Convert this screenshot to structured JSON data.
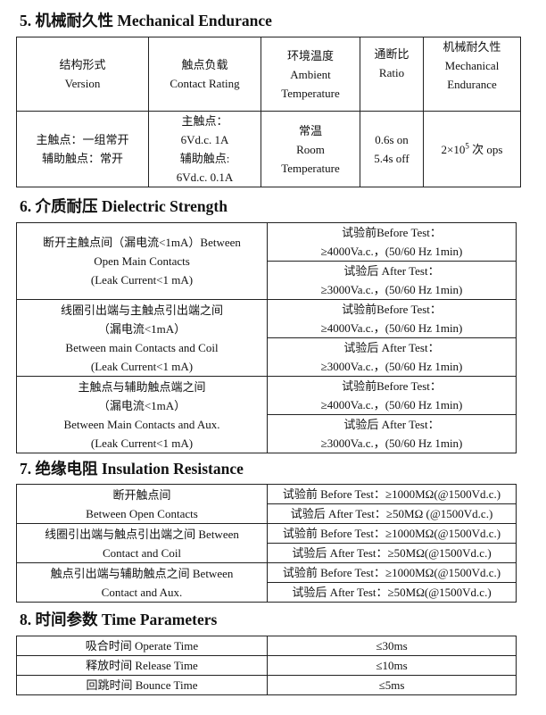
{
  "s5": {
    "title": "5.  机械耐久性 Mechanical Endurance",
    "headers": [
      [
        "结构形式",
        "Version"
      ],
      [
        "触点负载",
        "Contact Rating"
      ],
      [
        "环境温度",
        "Ambient",
        "Temperature"
      ],
      [
        "通断比",
        "Ratio"
      ],
      [
        "机械耐久性",
        "Mechanical",
        "Endurance"
      ]
    ],
    "row": {
      "version": [
        "主触点：一组常开",
        "辅助触点：常开"
      ],
      "rating": [
        "主触点：",
        "6Vd.c. 1A",
        "辅助触点:",
        "6Vd.c. 0.1A"
      ],
      "temp": [
        "常温",
        "Room",
        "Temperature"
      ],
      "ratio": [
        "0.6s on",
        "5.4s off"
      ],
      "endurance_base": "2×10",
      "endurance_exp": "5",
      "endurance_unit": " 次 ops"
    }
  },
  "s6": {
    "title": "6.  介质耐压 Dielectric Strength",
    "rows": [
      {
        "label": [
          "断开主触点间（漏电流<1mA）Between",
          "Open Main Contacts",
          "(Leak Current<1 mA)"
        ],
        "before": [
          "试验前Before Test：",
          "≥4000Va.c.，(50/60 Hz 1min)"
        ],
        "after": [
          "试验后 After Test：",
          "≥3000Va.c.，(50/60 Hz 1min)"
        ]
      },
      {
        "label": [
          "线圈引出端与主触点引出端之间",
          "（漏电流<1mA）",
          "Between main Contacts and Coil",
          "(Leak Current<1 mA)"
        ],
        "before": [
          "试验前Before Test：",
          "≥4000Va.c.，(50/60 Hz 1min)"
        ],
        "after": [
          "试验后 After Test：",
          "≥3000Va.c.，(50/60 Hz 1min)"
        ]
      },
      {
        "label": [
          "主触点与辅助触点端之间",
          "（漏电流<1mA）",
          "Between Main Contacts and Aux.",
          "(Leak Current<1 mA)"
        ],
        "before": [
          "试验前Before Test：",
          "≥4000Va.c.，(50/60 Hz 1min)"
        ],
        "after": [
          "试验后 After Test：",
          "≥3000Va.c.，(50/60 Hz 1min)"
        ]
      }
    ]
  },
  "s7": {
    "title": "7.  绝缘电阻 Insulation Resistance",
    "rows": [
      {
        "label": [
          "断开触点间",
          "Between Open Contacts"
        ],
        "before": "试验前 Before Test：≥1000MΩ(@1500Vd.c.)",
        "after": "试验后 After Test：≥50MΩ (@1500Vd.c.)"
      },
      {
        "label": [
          "线圈引出端与触点引出端之间 Between",
          "Contact and Coil"
        ],
        "before": "试验前 Before Test：≥1000MΩ(@1500Vd.c.)",
        "after": "试验后 After Test：≥50MΩ(@1500Vd.c.)"
      },
      {
        "label": [
          "触点引出端与辅助触点之间 Between",
          "Contact and Aux."
        ],
        "before": "试验前 Before Test：≥1000MΩ(@1500Vd.c.)",
        "after": "试验后 After Test：≥50MΩ(@1500Vd.c.)"
      }
    ]
  },
  "s8": {
    "title": "8.  时间参数 Time Parameters",
    "rows": [
      {
        "label": "吸合时间 Operate Time",
        "value": "≤30ms"
      },
      {
        "label": "释放时间 Release Time",
        "value": "≤10ms"
      },
      {
        "label": "回跳时间 Bounce Time",
        "value": "≤5ms"
      }
    ]
  }
}
